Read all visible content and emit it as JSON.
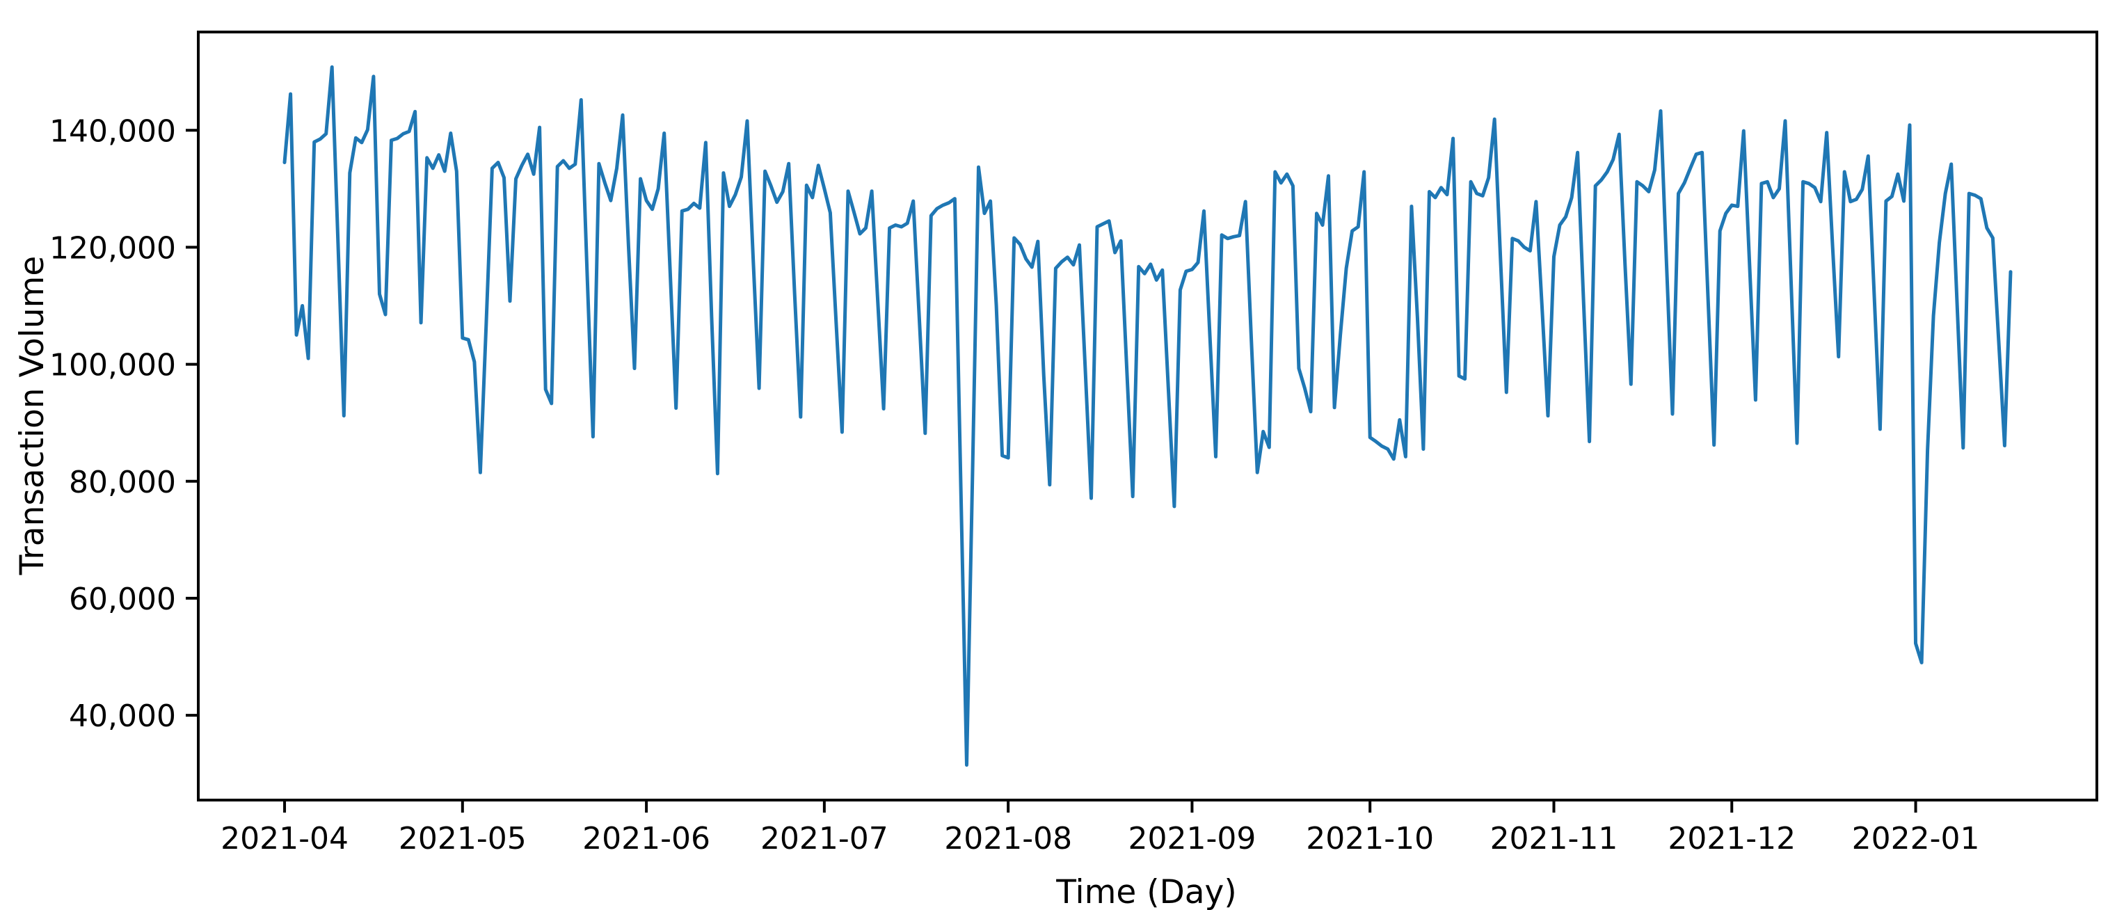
{
  "chart_data": {
    "type": "line",
    "title": "",
    "xlabel": "Time (Day)",
    "ylabel": "Transaction Volume",
    "grid": false,
    "legend": "none",
    "line_color": "#1f77b4",
    "spine_color": "#000000",
    "text_color": "#000000",
    "background_color": "#ffffff",
    "x_start_date": "2021-04-01",
    "x_end_date": "2022-01-17",
    "x_frequency": "daily",
    "x_tick_labels": [
      "2021-04",
      "2021-05",
      "2021-06",
      "2021-07",
      "2021-08",
      "2021-09",
      "2021-10",
      "2021-11",
      "2021-12",
      "2022-01"
    ],
    "y_tick_values": [
      40000,
      60000,
      80000,
      100000,
      120000,
      140000
    ],
    "y_tick_labels": [
      "40,000",
      "60,000",
      "80,000",
      "100,000",
      "120,000",
      "140,000"
    ],
    "ylim": [
      25500,
      156800
    ],
    "y_min_observed": 31500,
    "y_max_observed": 150800,
    "values": [
      134500,
      146200,
      105000,
      110000,
      101000,
      138000,
      138500,
      139400,
      150800,
      121000,
      91200,
      132700,
      138700,
      137900,
      140100,
      149200,
      112000,
      108500,
      138300,
      138600,
      139400,
      139800,
      143200,
      107100,
      135300,
      133500,
      135800,
      133000,
      139500,
      133000,
      104500,
      104200,
      100400,
      81500,
      107000,
      133500,
      134500,
      131900,
      110800,
      131700,
      134000,
      135900,
      132500,
      140500,
      95700,
      93300,
      133800,
      134800,
      133500,
      134200,
      145200,
      116000,
      87600,
      134300,
      131000,
      128000,
      133500,
      142600,
      120000,
      99300,
      131700,
      128000,
      126500,
      130000,
      139500,
      116000,
      92500,
      126200,
      126500,
      127500,
      126700,
      137900,
      108000,
      81300,
      132700,
      127000,
      129000,
      132000,
      141600,
      118000,
      95900,
      133000,
      130500,
      127700,
      129500,
      134300,
      112000,
      91000,
      130600,
      128500,
      134000,
      130000,
      125900,
      107000,
      88400,
      129600,
      126000,
      122300,
      123300,
      129600,
      111000,
      92400,
      123300,
      123800,
      123500,
      124100,
      127900,
      108000,
      88200,
      125400,
      126600,
      127200,
      127600,
      128300,
      80000,
      31500,
      82000,
      133700,
      125800,
      127900,
      110000,
      84400,
      84000,
      121600,
      120500,
      118000,
      116600,
      121000,
      98000,
      79400,
      116400,
      117500,
      118300,
      117000,
      120400,
      99000,
      77100,
      123500,
      124000,
      124500,
      119100,
      121100,
      99000,
      77400,
      116700,
      115500,
      117100,
      114400,
      116100,
      96000,
      75700,
      112700,
      115900,
      116200,
      117400,
      126200,
      105000,
      84200,
      122100,
      121500,
      121800,
      122000,
      127800,
      104000,
      81500,
      88500,
      85800,
      132900,
      131000,
      132500,
      130500,
      99300,
      95900,
      91900,
      125800,
      123800,
      132200,
      92600,
      105000,
      116400,
      122800,
      123500,
      132900,
      87500,
      86800,
      86000,
      85500,
      83800,
      90500,
      84200,
      127000,
      108000,
      85500,
      129500,
      128500,
      130200,
      129000,
      138600,
      98000,
      97500,
      131200,
      129200,
      128800,
      131900,
      141900,
      118000,
      95200,
      121500,
      121100,
      120000,
      119400,
      127800,
      110000,
      91200,
      118400,
      123800,
      125200,
      128500,
      136200,
      111000,
      86800,
      130500,
      131500,
      132900,
      135000,
      139300,
      117000,
      96600,
      131200,
      130500,
      129500,
      133200,
      143300,
      117000,
      91500,
      129200,
      131000,
      133500,
      135900,
      136200,
      111000,
      86200,
      122800,
      125800,
      127200,
      127000,
      139900,
      117000,
      93900,
      130900,
      131200,
      128500,
      130000,
      141600,
      114000,
      86500,
      131200,
      130900,
      130200,
      127800,
      139600,
      120000,
      101300,
      132900,
      127800,
      128200,
      129900,
      135600,
      112000,
      88900,
      127900,
      128700,
      132500,
      127900,
      140900,
      52300,
      49000,
      85300,
      108300,
      120800,
      129200,
      134200,
      110000,
      85700,
      129200,
      128900,
      128300,
      123300,
      121600,
      104000,
      86100,
      115800
    ]
  }
}
